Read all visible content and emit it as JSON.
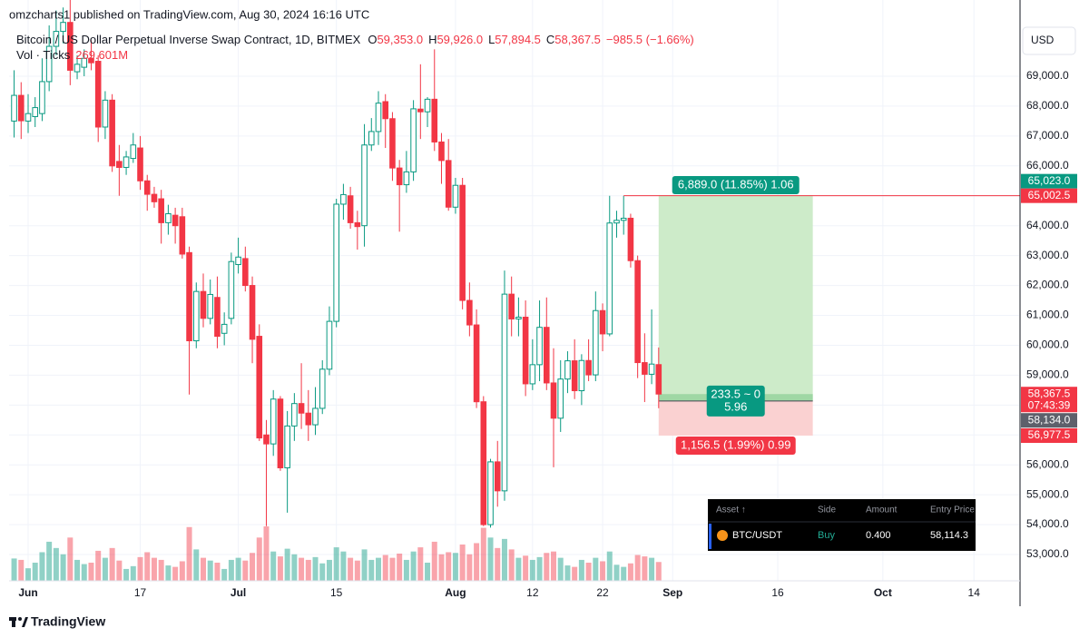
{
  "header": {
    "text": "omzcharts1 published on TradingView.com, Aug 30, 2024 16:16 UTC"
  },
  "legend": {
    "name": "Bitcoin / US Dollar Perpetual Inverse Swap Contract, 1D, BITMEX",
    "items": [
      {
        "key": "O",
        "text": "59,353.0"
      },
      {
        "key": "H",
        "text": "59,926.0"
      },
      {
        "key": "L",
        "text": "57,894.5"
      },
      {
        "key": "C",
        "text": "58,367.5"
      }
    ],
    "change": "−985.5 (−1.66%)",
    "color": "#f23645",
    "volume_name": "Vol · Ticks",
    "volume_label": "269.601M"
  },
  "chart_data": {
    "type": "candlestick",
    "currency": "USD",
    "up_color": "#089981",
    "down_color": "#f23645",
    "hollow_up": true,
    "grid": true,
    "xlim": [
      -2.72,
      141.45
    ],
    "ylim": [
      52120,
      71550
    ],
    "xticks": [
      {
        "value": 0,
        "label": "Jun"
      },
      {
        "value": 16,
        "label": "17"
      },
      {
        "value": 30,
        "label": "Jul"
      },
      {
        "value": 44,
        "label": "15"
      },
      {
        "value": 61,
        "label": "Aug"
      },
      {
        "value": 72,
        "label": "12"
      },
      {
        "value": 82,
        "label": "22"
      },
      {
        "value": 92,
        "label": "Sep"
      },
      {
        "value": 107,
        "label": "16"
      },
      {
        "value": 122,
        "label": "Oct"
      },
      {
        "value": 135,
        "label": "14"
      }
    ],
    "yticks": [
      {
        "value": 53000,
        "label": "53,000.0"
      },
      {
        "value": 54000,
        "label": "54,000.0"
      },
      {
        "value": 55000,
        "label": "55,000.0"
      },
      {
        "value": 56000,
        "label": "56,000.0"
      },
      {
        "value": 57000,
        "label": "57,000.0"
      },
      {
        "value": 58000,
        "label": "58,000.0"
      },
      {
        "value": 59000,
        "label": "59,000.0"
      },
      {
        "value": 60000,
        "label": "60,000.0"
      },
      {
        "value": 61000,
        "label": "61,000.0"
      },
      {
        "value": 62000,
        "label": "62,000.0"
      },
      {
        "value": 63000,
        "label": "63,000.0"
      },
      {
        "value": 64000,
        "label": "64,000.0"
      },
      {
        "value": 65000,
        "label": "65,000.0"
      },
      {
        "value": 66000,
        "label": "66,000.0"
      },
      {
        "value": 67000,
        "label": "67,000.0"
      },
      {
        "value": 68000,
        "label": "68,000.0"
      },
      {
        "value": 69000,
        "label": "69,000.0"
      }
    ],
    "x": [
      -2,
      -1,
      0,
      1,
      2,
      3,
      4,
      5,
      6,
      7,
      8,
      9,
      10,
      11,
      12,
      13,
      14,
      15,
      16,
      17,
      18,
      19,
      20,
      21,
      22,
      23,
      24,
      25,
      26,
      27,
      28,
      29,
      30,
      31,
      32,
      33,
      34,
      35,
      36,
      37,
      38,
      39,
      40,
      41,
      42,
      43,
      44,
      45,
      46,
      47,
      48,
      49,
      50,
      51,
      52,
      53,
      54,
      55,
      56,
      57,
      58,
      59,
      60,
      61,
      62,
      63,
      64,
      65,
      66,
      67,
      68,
      69,
      70,
      71,
      72,
      73,
      74,
      75,
      76,
      77,
      78,
      79,
      80,
      81,
      82,
      83,
      84,
      85,
      86,
      87,
      88,
      89,
      90
    ],
    "open": [
      67500,
      68360,
      67500,
      67650,
      67750,
      68820,
      70000,
      70500,
      70800,
      69150,
      69300,
      69600,
      69500,
      67300,
      68200,
      66150,
      65950,
      66250,
      66600,
      65500,
      65050,
      64900,
      64100,
      64350,
      64300,
      63100,
      60150,
      61800,
      60900,
      61600,
      60400,
      60900,
      62700,
      62900,
      62000,
      60300,
      57000,
      56700,
      58200,
      55900,
      57300,
      58050,
      57730,
      57340,
      57890,
      59200,
      60800,
      64720,
      65000,
      64100,
      64000,
      66700,
      67150,
      68150,
      67580,
      65930,
      65370,
      65800,
      67900,
      67810,
      68230,
      66800,
      66180,
      64620,
      65350,
      61500,
      60680,
      58110,
      54000,
      56100,
      55130,
      61710,
      60880,
      60940,
      58710,
      59350,
      60600,
      58740,
      57560,
      58870,
      59480,
      58480,
      59490,
      59010,
      61160,
      60380,
      64090,
      64180,
      64250,
      62830,
      59420,
      59030,
      59353
    ],
    "high": [
      69200,
      68800,
      68400,
      68300,
      69600,
      70700,
      71200,
      71300,
      71900,
      69700,
      69900,
      70200,
      69700,
      68500,
      68400,
      66700,
      66500,
      67100,
      67000,
      65700,
      65300,
      65200,
      64700,
      64600,
      64600,
      63300,
      62100,
      62400,
      62200,
      62300,
      61100,
      63100,
      63600,
      63300,
      62300,
      60700,
      57500,
      58500,
      58300,
      57800,
      58400,
      59400,
      58500,
      58600,
      59500,
      61300,
      64900,
      65400,
      65300,
      64500,
      67400,
      67600,
      68500,
      68400,
      67800,
      66200,
      66500,
      68200,
      69400,
      68300,
      69900,
      67100,
      66900,
      65600,
      65600,
      62100,
      61200,
      58300,
      56200,
      56800,
      62500,
      62300,
      61600,
      61500,
      60200,
      61500,
      61600,
      59900,
      59500,
      59800,
      60200,
      59700,
      60200,
      61800,
      61400,
      65000,
      64500,
      65000,
      64400,
      63000,
      60400,
      61200,
      59926
    ],
    "low": [
      66950,
      66900,
      67100,
      67300,
      67500,
      68500,
      69700,
      70100,
      68700,
      68900,
      69000,
      69200,
      66800,
      66900,
      65800,
      65000,
      65700,
      66100,
      65200,
      64500,
      64600,
      63400,
      63700,
      63400,
      62900,
      58350,
      59900,
      60600,
      60700,
      59900,
      60000,
      60700,
      62400,
      61800,
      59400,
      56800,
      53950,
      56300,
      55800,
      54400,
      56800,
      57200,
      56800,
      57000,
      57700,
      59000,
      60600,
      64200,
      63900,
      63200,
      63300,
      66500,
      66700,
      66600,
      65500,
      63800,
      65100,
      65500,
      66900,
      67300,
      66500,
      65400,
      64500,
      64400,
      61200,
      60300,
      57900,
      53950,
      53900,
      54600,
      54800,
      60300,
      60300,
      58300,
      58500,
      58800,
      58500,
      55920,
      57100,
      58400,
      58200,
      58000,
      58800,
      58800,
      59800,
      60300,
      63600,
      63700,
      62600,
      58900,
      58100,
      58700,
      57894.5
    ],
    "close": [
      68360,
      67510,
      67750,
      67950,
      68820,
      70000,
      70500,
      70800,
      69200,
      69400,
      69600,
      69450,
      67300,
      68200,
      66000,
      65950,
      66300,
      66700,
      65500,
      65050,
      64800,
      64100,
      64400,
      64000,
      63050,
      60150,
      61800,
      60900,
      61700,
      60300,
      60700,
      62800,
      62950,
      62000,
      60200,
      56900,
      56700,
      58200,
      55900,
      57300,
      58050,
      57730,
      57340,
      57890,
      59200,
      60800,
      64720,
      65040,
      64100,
      63970,
      66700,
      67150,
      68100,
      67580,
      65930,
      65370,
      65800,
      67910,
      67810,
      68230,
      66800,
      66180,
      64620,
      65350,
      61500,
      60680,
      58110,
      54000,
      56100,
      55130,
      61710,
      60880,
      60940,
      58710,
      59350,
      60600,
      58740,
      57560,
      58870,
      59480,
      58480,
      59490,
      59010,
      61160,
      60380,
      64090,
      64180,
      64250,
      62830,
      59420,
      59030,
      59370,
      58367.5
    ],
    "volume": [
      320,
      300,
      180,
      260,
      410,
      560,
      470,
      380,
      620,
      300,
      240,
      260,
      430,
      330,
      470,
      290,
      170,
      210,
      340,
      410,
      330,
      300,
      220,
      200,
      280,
      770,
      450,
      330,
      290,
      260,
      170,
      300,
      330,
      290,
      400,
      620,
      780,
      420,
      350,
      460,
      380,
      330,
      300,
      340,
      250,
      300,
      480,
      420,
      330,
      290,
      450,
      300,
      330,
      370,
      330,
      390,
      300,
      420,
      480,
      260,
      560,
      380,
      410,
      400,
      520,
      380,
      540,
      760,
      620,
      470,
      600,
      450,
      330,
      360,
      300,
      340,
      400,
      420,
      330,
      220,
      200,
      300,
      260,
      330,
      280,
      420,
      230,
      200,
      250,
      370,
      350,
      330,
      269.601
    ],
    "last_price": {
      "value": 58367.5,
      "label": "58,367.5",
      "countdown": "07:43:39"
    },
    "position": {
      "start_x": 90,
      "end_x": 112,
      "target": {
        "value": 65023,
        "label": "65,023.0"
      },
      "entry": {
        "value": 58134,
        "label": "58,134.0"
      },
      "stop": {
        "value": 56977.5,
        "label": "56,977.5"
      },
      "target_text": "6,889.0 (11.85%) 1.06",
      "entry_text": [
        "233.5 ~ 0",
        "5.96"
      ],
      "stop_text": "1,156.5 (1.99%) 0.99"
    },
    "hline": {
      "start_x": 85,
      "value": 65002.5,
      "label": "65,002.5"
    }
  },
  "table": {
    "columns": [
      "Asset ↑",
      "Side",
      "Amount",
      "Entry Price"
    ],
    "rows": [
      [
        "BTC/USDT",
        "Buy",
        "0.400",
        "58,114.3"
      ]
    ]
  },
  "footer": {
    "brand": "TradingView"
  }
}
